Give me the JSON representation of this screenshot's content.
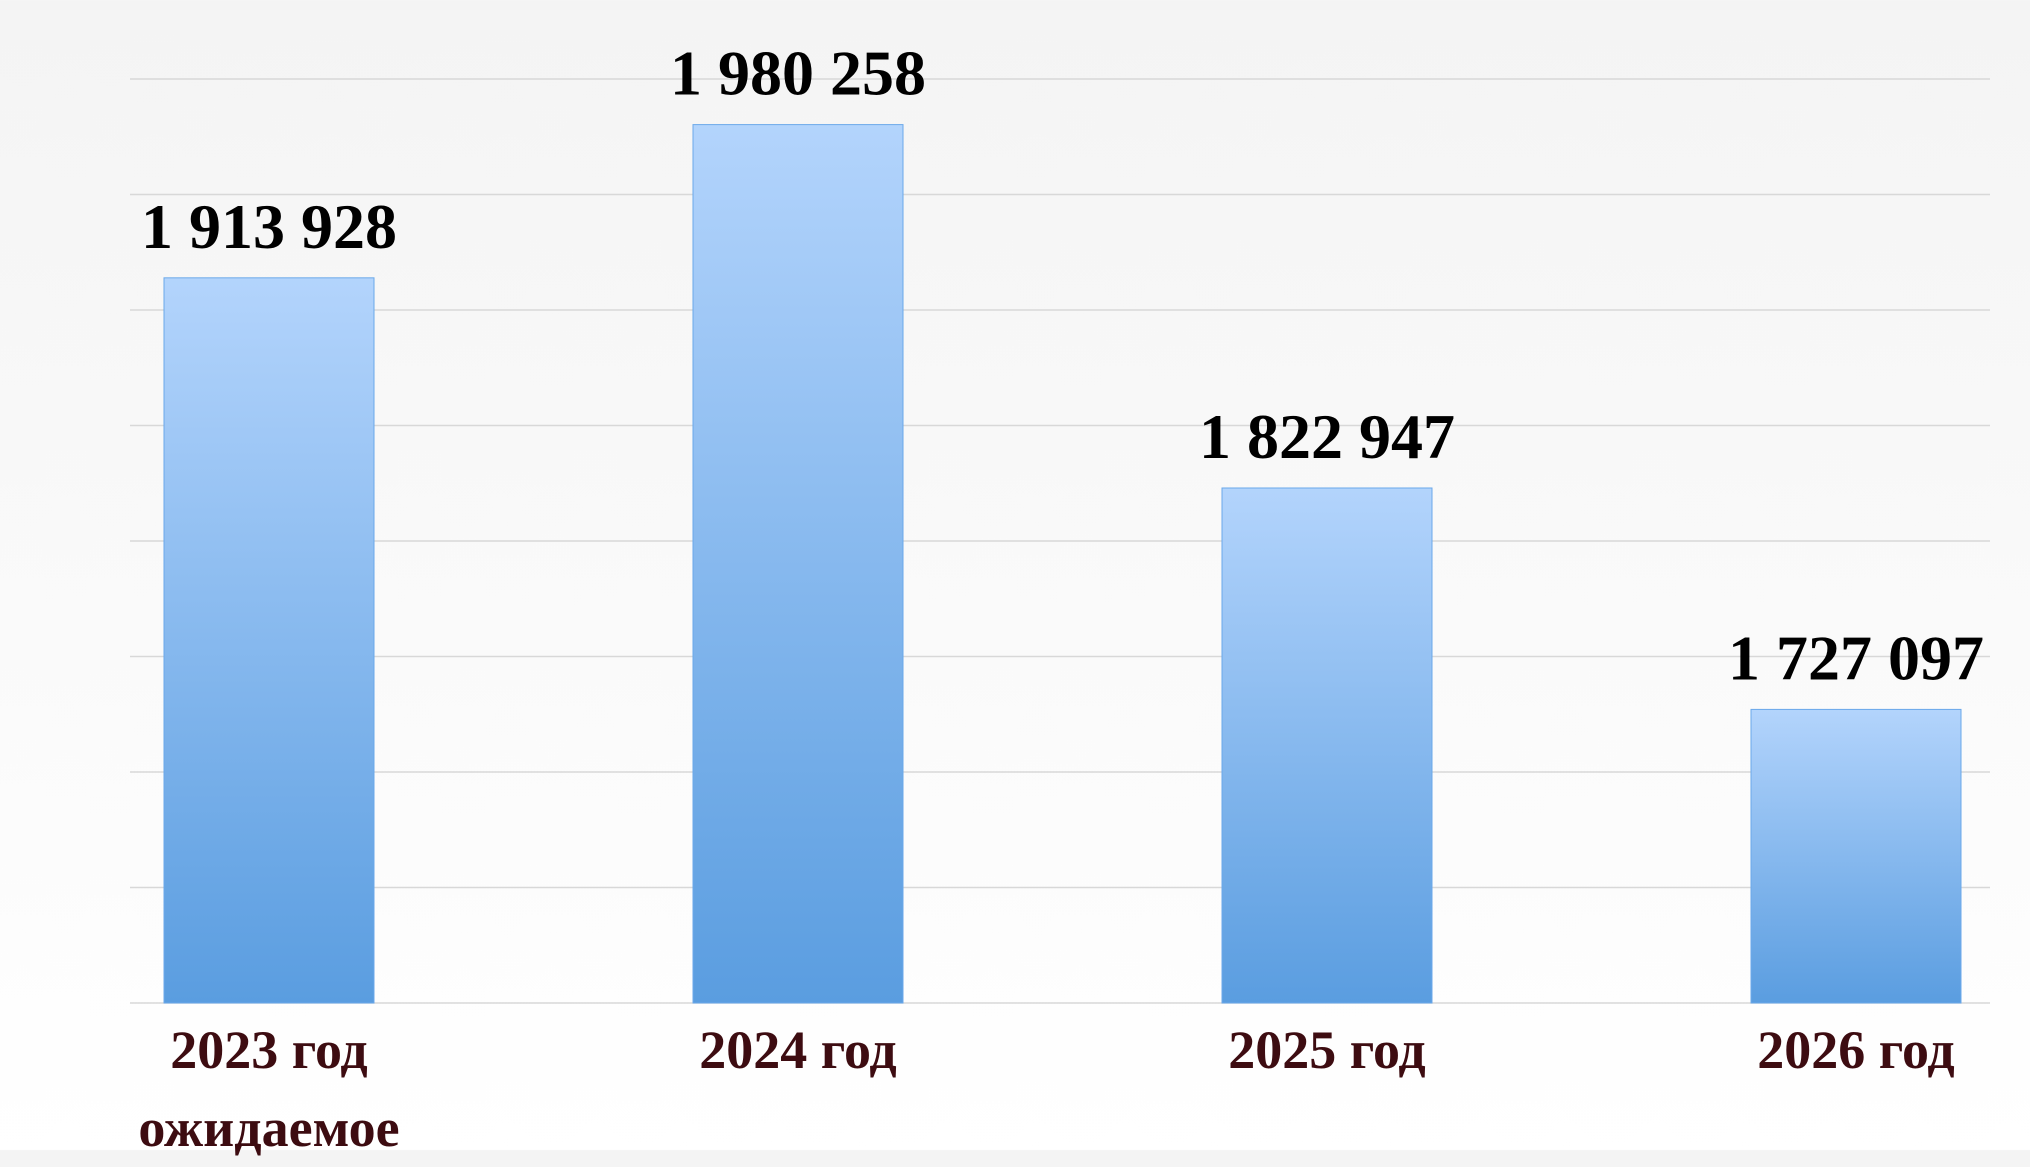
{
  "chart_data": {
    "type": "bar",
    "categories": [
      "2023 год ожидаемое",
      "2024 год",
      "2025 год",
      "2026 год"
    ],
    "values": [
      1913928,
      1980258,
      1822947,
      1727097
    ],
    "value_labels": [
      "1 913 928",
      "1 980 258",
      "1 822 947",
      "1 727 097"
    ],
    "ylim": [
      1600000,
      2000000
    ],
    "yticks": [
      1600000,
      1650000,
      1700000,
      1750000,
      1800000,
      1850000,
      1900000,
      1950000,
      2000000
    ],
    "grid": true,
    "color": "#6aa8ea"
  }
}
